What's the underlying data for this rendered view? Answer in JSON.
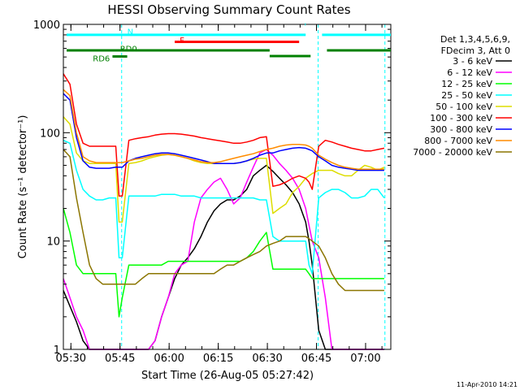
{
  "chart_data": {
    "type": "line",
    "title": "HESSI Observing Summary Count Rates",
    "xlabel": "Start Time (26-Aug-05 05:27:42)",
    "ylabel": "Count Rate (s⁻¹ detector⁻¹)",
    "x_unit": "minutes after 05:27:42",
    "xlim": [
      0,
      100
    ],
    "ylim": [
      1,
      1000
    ],
    "y_scale": "log",
    "x_ticks": [
      {
        "label": "05:30",
        "x": 2.3
      },
      {
        "label": "05:45",
        "x": 17.3
      },
      {
        "label": "06:00",
        "x": 32.3
      },
      {
        "label": "06:15",
        "x": 47.3
      },
      {
        "label": "06:30",
        "x": 62.3
      },
      {
        "label": "06:45",
        "x": 77.3
      },
      {
        "label": "07:00",
        "x": 92.3
      }
    ],
    "y_ticks": [
      {
        "label": "1",
        "y": 1
      },
      {
        "label": "10",
        "y": 10
      },
      {
        "label": "100",
        "y": 100
      },
      {
        "label": "1000",
        "y": 1000
      }
    ],
    "legend": {
      "header": [
        "Det 1,3,4,5,6,9,",
        "FDecim 3, Att 0"
      ],
      "placement": "right"
    },
    "series": [
      {
        "name": "3 - 6 keV",
        "color": "#000000",
        "x": [
          0,
          2,
          4,
          6,
          8,
          10,
          12,
          14,
          16,
          17,
          18,
          20,
          22,
          24,
          26,
          28,
          30,
          32,
          34,
          36,
          38,
          40,
          42,
          44,
          46,
          48,
          50,
          52,
          54,
          56,
          58,
          60,
          62,
          64,
          66,
          68,
          70,
          72,
          74,
          75,
          76,
          78,
          80,
          82,
          84,
          86,
          88,
          90,
          92,
          94,
          96,
          98
        ],
        "y": [
          3.5,
          2.5,
          1.8,
          1.2,
          1,
          1,
          1,
          1,
          1,
          1,
          1,
          1,
          1,
          1,
          1,
          1.2,
          2,
          3,
          4.5,
          6,
          7,
          8.5,
          11,
          15,
          19,
          22,
          24,
          24,
          26,
          30,
          40,
          45,
          50,
          44,
          38,
          33,
          28,
          22,
          15,
          10,
          6,
          1.5,
          1,
          1,
          1,
          1,
          1,
          1,
          1,
          1,
          1,
          1
        ]
      },
      {
        "name": "6 - 12 keV",
        "color": "#ff00ff",
        "x": [
          0,
          2,
          4,
          6,
          8,
          10,
          12,
          14,
          16,
          17,
          18,
          20,
          22,
          24,
          26,
          28,
          30,
          32,
          34,
          36,
          38,
          40,
          42,
          44,
          46,
          48,
          50,
          52,
          54,
          56,
          58,
          60,
          62,
          64,
          66,
          68,
          70,
          72,
          74,
          75,
          76,
          78,
          80,
          82,
          84,
          86,
          88,
          90,
          92,
          94,
          96,
          98
        ],
        "y": [
          4.5,
          3,
          2,
          1.5,
          1,
          1,
          1,
          1,
          1,
          1,
          1,
          1,
          1,
          1,
          1,
          1.2,
          2,
          3,
          5,
          6,
          6.5,
          15,
          25,
          30,
          35,
          38,
          30,
          22,
          25,
          35,
          48,
          65,
          70,
          62,
          52,
          45,
          38,
          30,
          20,
          14,
          10,
          7,
          3,
          1,
          1,
          1,
          1,
          1,
          1,
          1,
          1,
          1
        ]
      },
      {
        "name": "12 - 25 keV",
        "color": "#00ff00",
        "x": [
          0,
          2,
          4,
          6,
          8,
          10,
          12,
          14,
          16,
          17,
          18,
          20,
          22,
          24,
          26,
          28,
          30,
          32,
          34,
          36,
          38,
          40,
          42,
          44,
          46,
          48,
          50,
          52,
          54,
          56,
          58,
          60,
          62,
          64,
          66,
          68,
          70,
          72,
          74,
          75,
          76,
          78,
          80,
          82,
          84,
          86,
          88,
          90,
          92,
          94,
          96,
          98
        ],
        "y": [
          20,
          12,
          6,
          5,
          5,
          5,
          5,
          5,
          5,
          2,
          3,
          6,
          6,
          6,
          6,
          6,
          6,
          6.5,
          6.5,
          6.5,
          6.5,
          6.5,
          6.5,
          6.5,
          6.5,
          6.5,
          6.5,
          6.5,
          6.5,
          7,
          8,
          10,
          12,
          5.5,
          5.5,
          5.5,
          5.5,
          5.5,
          5.5,
          5,
          4.5,
          4.5,
          4.5,
          4.5,
          4.5,
          4.5,
          4.5,
          4.5,
          4.5,
          4.5,
          4.5,
          4.5
        ]
      },
      {
        "name": "25 - 50 keV",
        "color": "#00ffff",
        "x": [
          0,
          2,
          4,
          6,
          8,
          10,
          12,
          14,
          16,
          17,
          18,
          20,
          22,
          24,
          26,
          28,
          30,
          32,
          34,
          36,
          38,
          40,
          42,
          44,
          46,
          48,
          50,
          52,
          54,
          56,
          58,
          60,
          62,
          64,
          66,
          68,
          70,
          72,
          74,
          75,
          76,
          78,
          80,
          82,
          84,
          86,
          88,
          90,
          92,
          94,
          96,
          98
        ],
        "y": [
          85,
          80,
          45,
          30,
          26,
          24,
          24,
          25,
          25,
          7,
          7,
          26,
          26,
          26,
          26,
          26,
          27,
          27,
          27,
          26,
          26,
          26,
          25,
          25,
          25,
          25,
          25,
          25,
          25,
          25,
          25,
          24,
          24,
          11,
          10,
          10,
          10,
          10,
          10,
          6,
          5,
          25,
          28,
          30,
          30,
          28,
          25,
          25,
          26,
          30,
          30,
          25
        ]
      },
      {
        "name": "50 - 100 keV",
        "color": "#dddd00",
        "x": [
          0,
          2,
          4,
          6,
          8,
          10,
          12,
          14,
          16,
          17,
          18,
          20,
          22,
          24,
          26,
          28,
          30,
          32,
          34,
          36,
          38,
          40,
          42,
          44,
          46,
          48,
          50,
          52,
          54,
          56,
          58,
          60,
          62,
          64,
          66,
          68,
          70,
          72,
          74,
          75,
          76,
          78,
          80,
          82,
          84,
          86,
          88,
          90,
          92,
          94,
          96,
          98
        ],
        "y": [
          140,
          120,
          65,
          55,
          52,
          52,
          52,
          52,
          52,
          15,
          15,
          52,
          53,
          55,
          58,
          60,
          62,
          63,
          62,
          60,
          58,
          55,
          53,
          52,
          52,
          52,
          52,
          52,
          53,
          55,
          57,
          58,
          58,
          18,
          20,
          22,
          28,
          32,
          38,
          40,
          42,
          45,
          45,
          45,
          42,
          40,
          40,
          45,
          50,
          48,
          45,
          48
        ]
      },
      {
        "name": "100 - 300 keV",
        "color": "#ff0000",
        "x": [
          0,
          2,
          4,
          6,
          8,
          10,
          12,
          14,
          16,
          17,
          18,
          20,
          22,
          24,
          26,
          28,
          30,
          32,
          34,
          36,
          38,
          40,
          42,
          44,
          46,
          48,
          50,
          52,
          54,
          56,
          58,
          60,
          62,
          64,
          66,
          68,
          70,
          72,
          74,
          75,
          76,
          78,
          80,
          82,
          84,
          86,
          88,
          90,
          92,
          94,
          96,
          98
        ],
        "y": [
          350,
          280,
          120,
          80,
          75,
          75,
          75,
          75,
          75,
          26,
          26,
          85,
          88,
          90,
          92,
          95,
          97,
          98,
          98,
          97,
          95,
          93,
          90,
          88,
          86,
          84,
          82,
          80,
          80,
          82,
          85,
          90,
          92,
          32,
          33,
          35,
          38,
          40,
          38,
          35,
          30,
          75,
          85,
          82,
          78,
          75,
          72,
          70,
          68,
          68,
          70,
          72
        ]
      },
      {
        "name": "300 - 800 keV",
        "color": "#0000ff",
        "x": [
          0,
          2,
          4,
          6,
          8,
          10,
          12,
          14,
          16,
          17,
          18,
          20,
          22,
          24,
          26,
          28,
          30,
          32,
          34,
          36,
          38,
          40,
          42,
          44,
          46,
          48,
          50,
          52,
          54,
          56,
          58,
          60,
          62,
          64,
          66,
          68,
          70,
          72,
          74,
          75,
          76,
          78,
          80,
          82,
          84,
          86,
          88,
          90,
          92,
          94,
          96,
          98
        ],
        "y": [
          230,
          200,
          90,
          55,
          48,
          47,
          47,
          47,
          48,
          48,
          48,
          55,
          58,
          60,
          62,
          64,
          65,
          65,
          64,
          62,
          60,
          58,
          56,
          54,
          52,
          52,
          52,
          52,
          53,
          55,
          58,
          62,
          65,
          65,
          68,
          70,
          72,
          73,
          72,
          70,
          68,
          60,
          55,
          50,
          48,
          47,
          46,
          45,
          45,
          45,
          45,
          45
        ]
      },
      {
        "name": "800 - 7000 keV",
        "color": "#ff8c00",
        "x": [
          0,
          2,
          4,
          6,
          8,
          10,
          12,
          14,
          16,
          17,
          18,
          20,
          22,
          24,
          26,
          28,
          30,
          32,
          34,
          36,
          38,
          40,
          42,
          44,
          46,
          48,
          50,
          52,
          54,
          56,
          58,
          60,
          62,
          64,
          66,
          68,
          70,
          72,
          74,
          75,
          76,
          78,
          80,
          82,
          84,
          86,
          88,
          90,
          92,
          94,
          96,
          98
        ],
        "y": [
          250,
          220,
          100,
          60,
          55,
          53,
          53,
          53,
          53,
          53,
          53,
          55,
          57,
          58,
          60,
          62,
          63,
          63,
          62,
          60,
          58,
          56,
          54,
          53,
          53,
          54,
          56,
          58,
          60,
          62,
          64,
          67,
          70,
          72,
          75,
          77,
          78,
          78,
          77,
          75,
          72,
          62,
          57,
          53,
          50,
          48,
          47,
          46,
          46,
          46,
          46,
          46
        ]
      },
      {
        "name": "7000 - 20000 keV",
        "color": "#8b7500",
        "x": [
          0,
          2,
          4,
          6,
          8,
          10,
          12,
          14,
          16,
          17,
          18,
          20,
          22,
          24,
          26,
          28,
          30,
          32,
          34,
          36,
          38,
          40,
          42,
          44,
          46,
          48,
          50,
          52,
          54,
          56,
          58,
          60,
          62,
          64,
          66,
          68,
          70,
          72,
          74,
          75,
          76,
          78,
          80,
          82,
          84,
          86,
          88,
          90,
          92,
          94,
          96,
          98
        ],
        "y": [
          70,
          60,
          25,
          12,
          6,
          4.5,
          4,
          4,
          4,
          4,
          4,
          4,
          4,
          4.5,
          5,
          5,
          5,
          5,
          5,
          5,
          5,
          5,
          5,
          5,
          5,
          5.5,
          6,
          6,
          6.5,
          7,
          7.5,
          8,
          9,
          9.5,
          10,
          11,
          11,
          11,
          11,
          10.5,
          10,
          9,
          7,
          5,
          4,
          3.5,
          3.5,
          3.5,
          3.5,
          3.5,
          3.5,
          3.5
        ]
      }
    ],
    "annotations": [
      {
        "label": "N",
        "color": "#00ffff"
      },
      {
        "label": "F",
        "color": "#ff0000"
      },
      {
        "label": "RD0",
        "color": "#008000"
      },
      {
        "label": "RD6",
        "color": "#008000"
      }
    ],
    "dashed_markers_x": [
      17.8,
      77.8,
      98.2
    ],
    "footer": "11-Apr-2010 14:21"
  }
}
